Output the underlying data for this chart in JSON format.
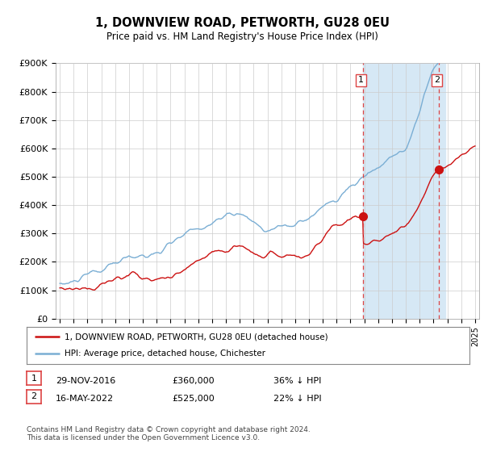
{
  "title": "1, DOWNVIEW ROAD, PETWORTH, GU28 0EU",
  "subtitle": "Price paid vs. HM Land Registry's House Price Index (HPI)",
  "ylabel_ticks": [
    "£0",
    "£100K",
    "£200K",
    "£300K",
    "£400K",
    "£500K",
    "£600K",
    "£700K",
    "£800K",
    "£900K"
  ],
  "ylim": [
    0,
    900000
  ],
  "xlim_start": 1995,
  "xlim_end": 2025,
  "hpi_color": "#7aaed4",
  "price_color": "#cc1111",
  "marker1_x": 2016.92,
  "marker1_y": 360000,
  "marker2_x": 2022.38,
  "marker2_y": 525000,
  "shade_color": "#d6e8f5",
  "legend_entry1": "1, DOWNVIEW ROAD, PETWORTH, GU28 0EU (detached house)",
  "legend_entry2": "HPI: Average price, detached house, Chichester",
  "table_row1": [
    "1",
    "29-NOV-2016",
    "£360,000",
    "36% ↓ HPI"
  ],
  "table_row2": [
    "2",
    "16-MAY-2022",
    "£525,000",
    "22% ↓ HPI"
  ],
  "footer": "Contains HM Land Registry data © Crown copyright and database right 2024.\nThis data is licensed under the Open Government Licence v3.0.",
  "background_color": "#ffffff",
  "grid_color": "#cccccc",
  "dashed_line_color": "#dd4444",
  "hpi_seed": 10,
  "price_seed": 20
}
